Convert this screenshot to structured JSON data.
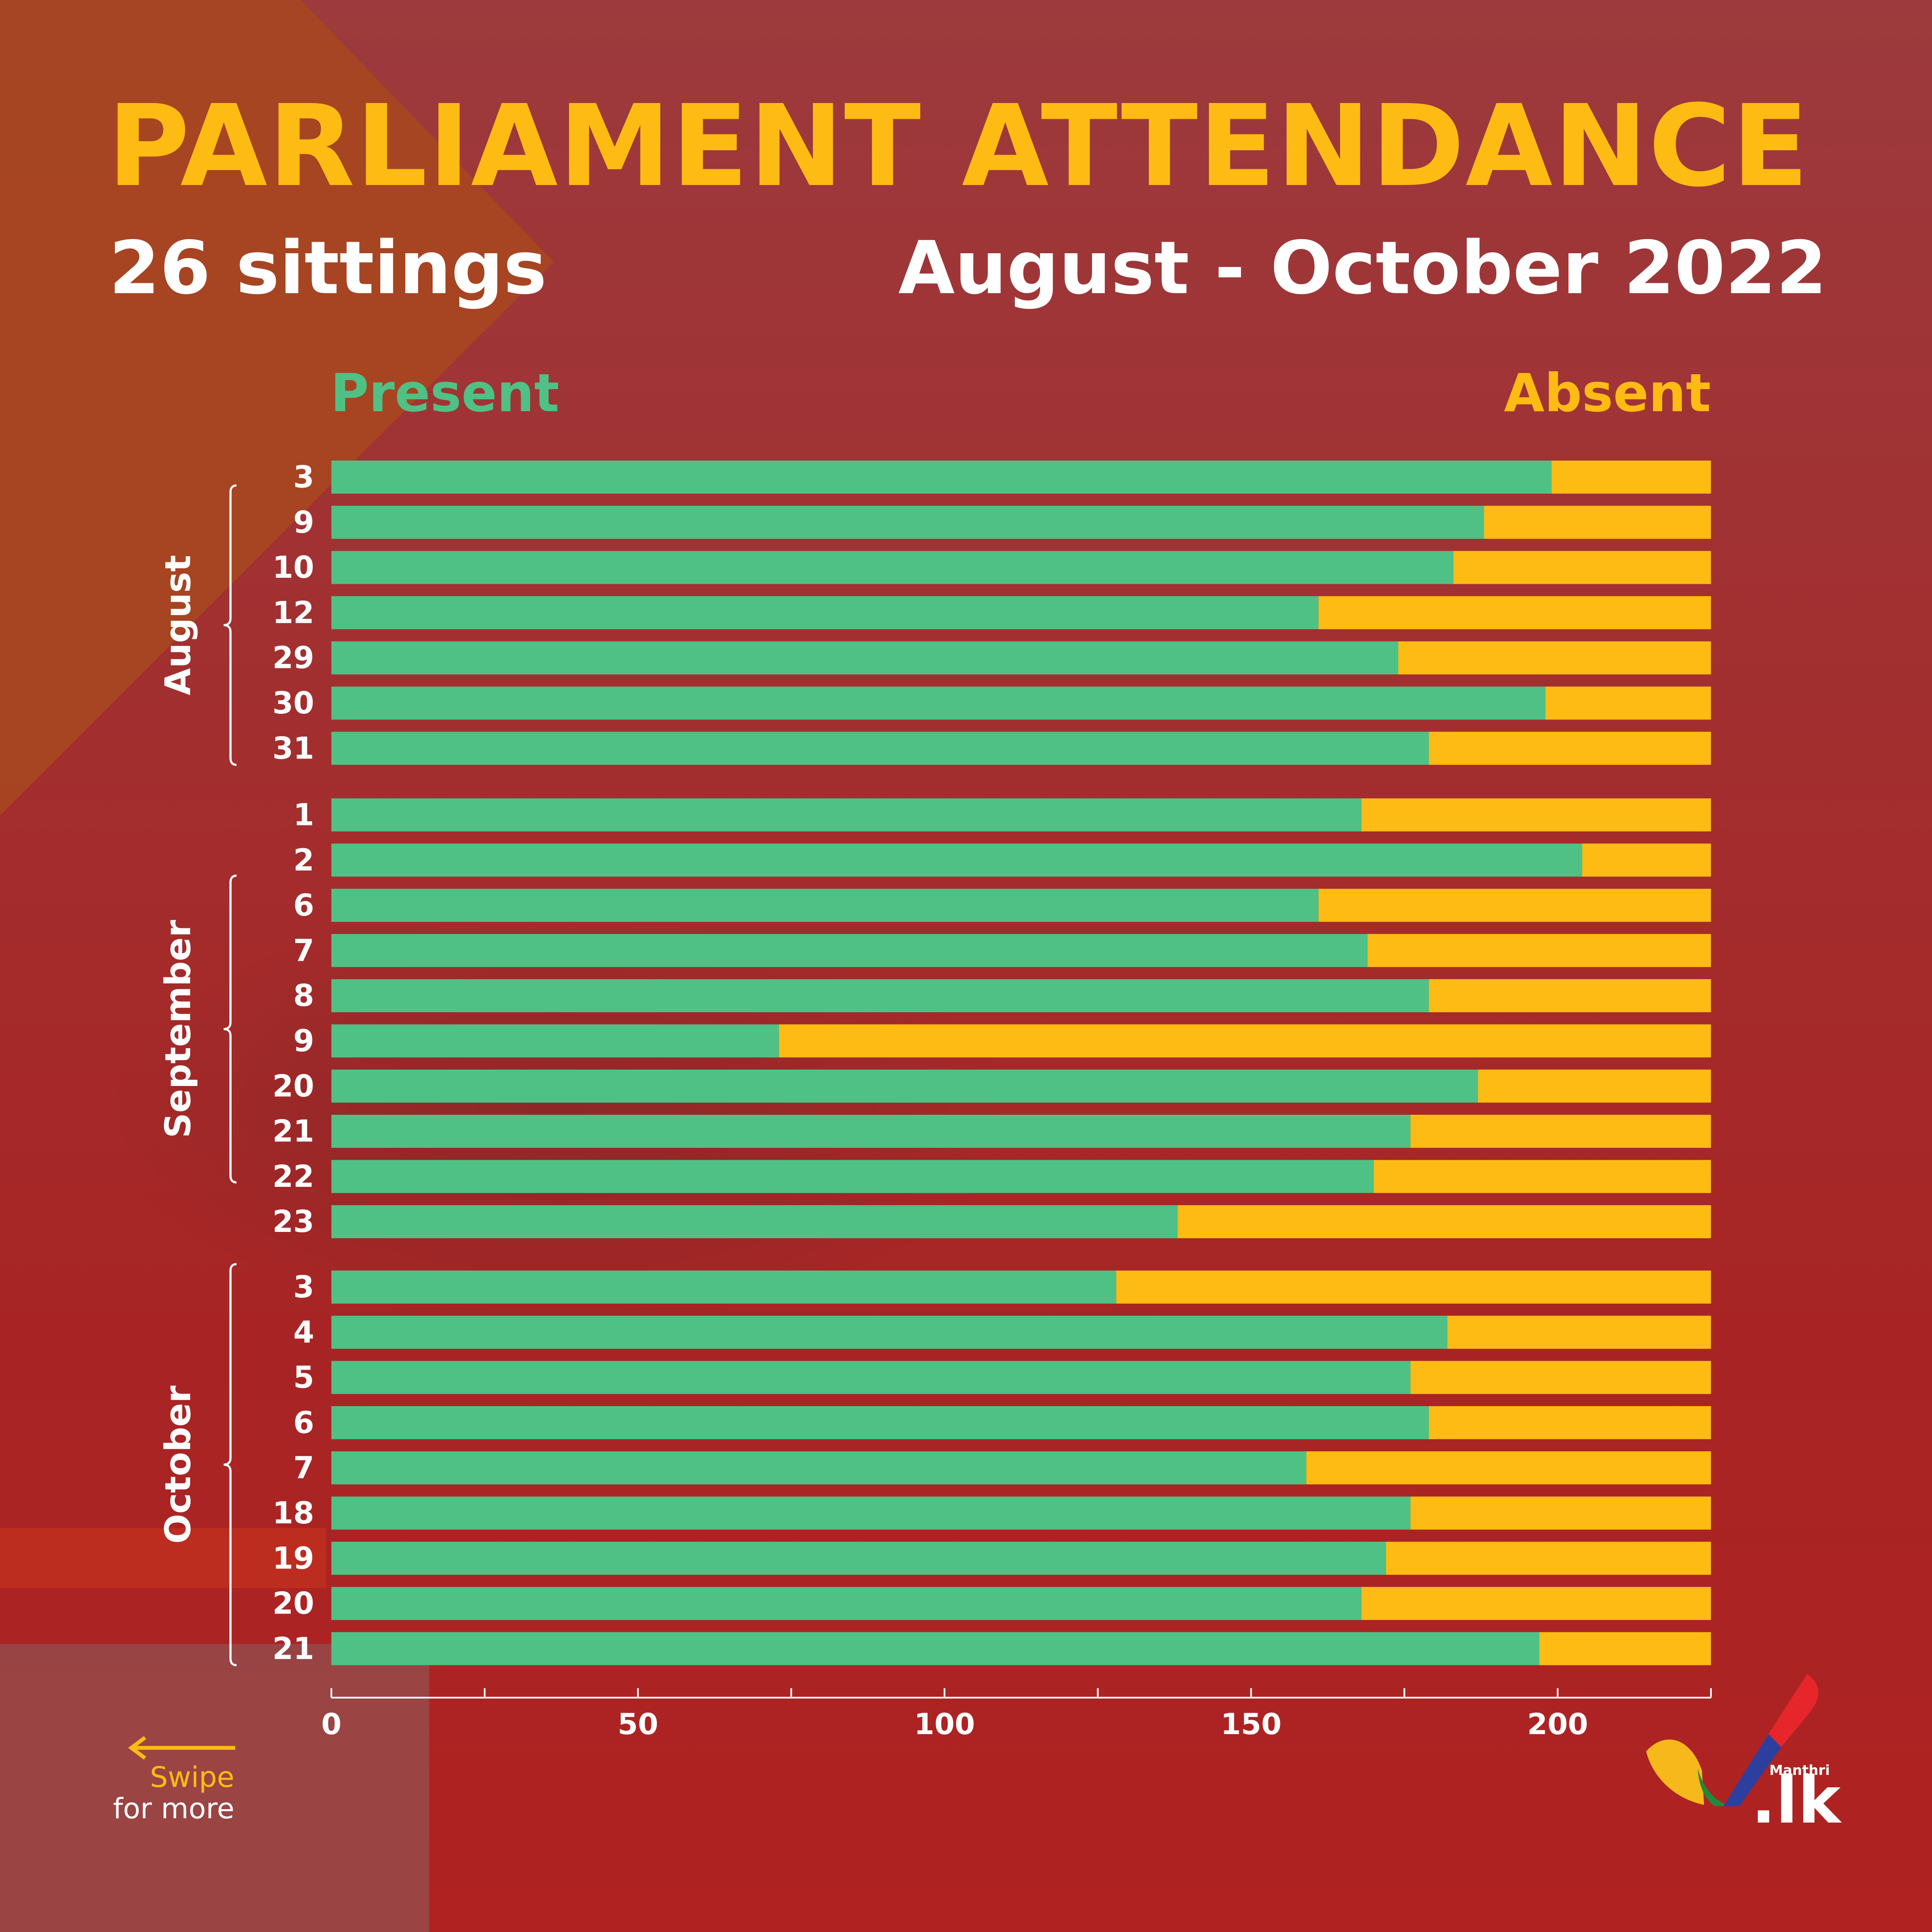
{
  "header": {
    "title": "PARLIAMENT ATTENDANCE",
    "subtitle_left": "26 sittings",
    "subtitle_right": "August - October 2022"
  },
  "legend": {
    "present": "Present",
    "absent": "Absent"
  },
  "colors": {
    "present": "#4fc185",
    "absent": "#fdbb13",
    "title": "#fdbb13",
    "text": "#ffffff",
    "background": "#a32424"
  },
  "chart_data": {
    "type": "bar",
    "orientation": "horizontal",
    "stacked": true,
    "title": "PARLIAMENT ATTENDANCE",
    "xlim": [
      0,
      225
    ],
    "xticks": [
      0,
      50,
      100,
      150,
      200
    ],
    "total_members": 225,
    "groups": [
      {
        "name": "August",
        "days": [
          "3",
          "9",
          "10",
          "12",
          "29",
          "30",
          "31"
        ],
        "present": [
          199,
          188,
          183,
          161,
          174,
          198,
          179
        ],
        "absent": [
          26,
          37,
          42,
          64,
          51,
          27,
          46
        ]
      },
      {
        "name": "September",
        "days": [
          "1",
          "2",
          "6",
          "7",
          "8",
          "9",
          "20",
          "21",
          "22",
          "23"
        ],
        "present": [
          168,
          204,
          161,
          169,
          179,
          73,
          187,
          176,
          170,
          138
        ],
        "absent": [
          57,
          21,
          64,
          56,
          46,
          152,
          38,
          49,
          55,
          87
        ]
      },
      {
        "name": "October",
        "days": [
          "3",
          "4",
          "5",
          "6",
          "7",
          "18",
          "19",
          "20",
          "21"
        ],
        "present": [
          128,
          182,
          176,
          179,
          159,
          176,
          172,
          168,
          197
        ],
        "absent": [
          97,
          43,
          49,
          46,
          66,
          49,
          53,
          57,
          28
        ]
      }
    ],
    "series": [
      {
        "name": "Present"
      },
      {
        "name": "Absent"
      }
    ]
  },
  "footer": {
    "swipe_line1": "Swipe",
    "swipe_line2": "for more",
    "logo_brand": "Manthri",
    "logo_domain": ".lk"
  }
}
